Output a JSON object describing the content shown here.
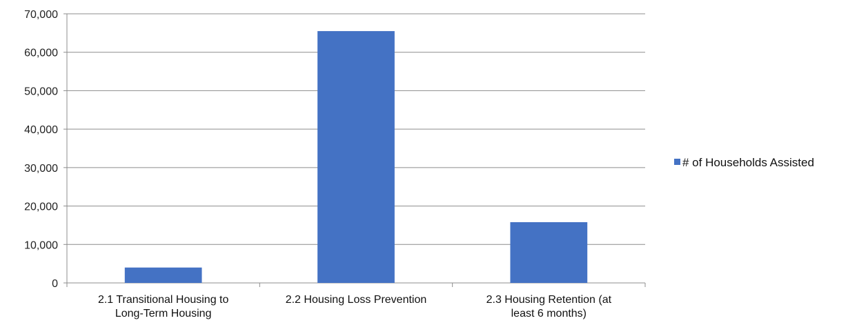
{
  "chart_data": {
    "type": "bar",
    "categories": [
      [
        "2.1 Transitional Housing to",
        "Long-Term Housing"
      ],
      [
        "2.2 Housing Loss Prevention"
      ],
      [
        "2.3 Housing Retention (at",
        "least 6 months)"
      ]
    ],
    "series": [
      {
        "name": "# of Households Assisted",
        "values": [
          4000,
          65500,
          15800
        ],
        "color": "#4472C4"
      }
    ],
    "ylim": [
      0,
      70000
    ],
    "yticks": [
      "0",
      "10,000",
      "20,000",
      "30,000",
      "40,000",
      "50,000",
      "60,000",
      "70,000"
    ],
    "grid": true,
    "legend_position": "right"
  }
}
